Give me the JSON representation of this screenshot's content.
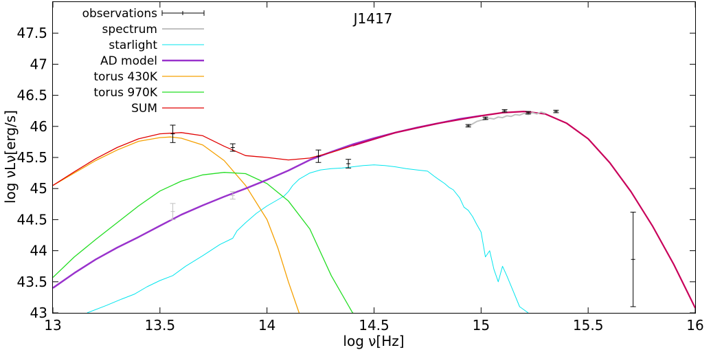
{
  "chart_data": {
    "type": "line",
    "title": "J1417",
    "xlabel": "log ν[Hz]",
    "ylabel": "log νLν[erg/s]",
    "xlim": [
      13,
      16
    ],
    "ylim": [
      43,
      48
    ],
    "x_ticks": [
      13,
      13.5,
      14,
      14.5,
      15,
      15.5,
      16
    ],
    "y_ticks": [
      43,
      43.5,
      44,
      44.5,
      45,
      45.5,
      46,
      46.5,
      47,
      47.5
    ],
    "x_tick_labels": [
      "13",
      "13.5",
      "14",
      "14.5",
      "15",
      "15.5",
      "16"
    ],
    "y_tick_labels": [
      "43",
      "43.5",
      "44",
      "44.5",
      "45",
      "45.5",
      "46",
      "46.5",
      "47",
      "47.5"
    ],
    "grid": false,
    "legend_position": "top-left",
    "series": [
      {
        "name": "observations",
        "kind": "errorbars",
        "color": "#000000",
        "points": [
          {
            "x": 13.56,
            "y": 45.88,
            "err": 0.14
          },
          {
            "x": 13.84,
            "y": 45.66,
            "err": 0.06
          },
          {
            "x": 14.24,
            "y": 45.52,
            "err": 0.1
          },
          {
            "x": 14.38,
            "y": 45.4,
            "err": 0.07
          },
          {
            "x": 14.94,
            "y": 46.01,
            "err": 0.02
          },
          {
            "x": 15.02,
            "y": 46.13,
            "err": 0.02
          },
          {
            "x": 15.11,
            "y": 46.25,
            "err": 0.02
          },
          {
            "x": 15.22,
            "y": 46.22,
            "err": 0.02
          },
          {
            "x": 15.35,
            "y": 46.24,
            "err": 0.02
          },
          {
            "x": 15.71,
            "y": 43.86,
            "err": 0.76
          }
        ]
      },
      {
        "name": "",
        "kind": "errorbars",
        "color": "#c0c0c0",
        "points": [
          {
            "x": 13.56,
            "y": 44.63,
            "err": 0.13
          },
          {
            "x": 13.84,
            "y": 44.89,
            "err": 0.06
          }
        ]
      },
      {
        "name": "spectrum",
        "kind": "line",
        "color": "#c0c0c0",
        "width": 2,
        "x": [
          14.95,
          14.98,
          15.0,
          15.02,
          15.04,
          15.06,
          15.08,
          15.1,
          15.12,
          15.14,
          15.16,
          15.18,
          15.2,
          15.22,
          15.24,
          15.26,
          15.28,
          15.3
        ],
        "y": [
          46.02,
          46.08,
          46.1,
          46.11,
          46.13,
          46.12,
          46.15,
          46.14,
          46.17,
          46.16,
          46.19,
          46.18,
          46.21,
          46.19,
          46.22,
          46.2,
          46.23,
          46.21
        ]
      },
      {
        "name": "starlight",
        "kind": "line",
        "color": "#00e5ee",
        "width": 1,
        "x": [
          13.16,
          13.25,
          13.32,
          13.38,
          13.44,
          13.5,
          13.56,
          13.62,
          13.7,
          13.78,
          13.84,
          13.86,
          13.9,
          13.95,
          14.0,
          14.05,
          14.08,
          14.1,
          14.12,
          14.15,
          14.2,
          14.25,
          14.3,
          14.35,
          14.4,
          14.45,
          14.5,
          14.55,
          14.6,
          14.65,
          14.7,
          14.75,
          14.78,
          14.8,
          14.83,
          14.85,
          14.87,
          14.9,
          14.92,
          14.94,
          14.96,
          14.98,
          15.0,
          15.02,
          15.04,
          15.06,
          15.08,
          15.1,
          15.12,
          15.15,
          15.18,
          15.2,
          15.22
        ],
        "y": [
          43.0,
          43.12,
          43.22,
          43.3,
          43.42,
          43.52,
          43.6,
          43.75,
          43.92,
          44.1,
          44.2,
          44.32,
          44.45,
          44.6,
          44.72,
          44.82,
          44.88,
          44.95,
          45.05,
          45.15,
          45.25,
          45.3,
          45.32,
          45.33,
          45.35,
          45.37,
          45.38,
          45.37,
          45.35,
          45.32,
          45.3,
          45.28,
          45.2,
          45.15,
          45.08,
          45.02,
          44.98,
          44.85,
          44.7,
          44.65,
          44.55,
          44.42,
          44.3,
          43.9,
          44.0,
          43.7,
          43.5,
          43.75,
          43.6,
          43.35,
          43.1,
          43.05,
          43.0
        ]
      },
      {
        "name": "AD model",
        "kind": "line",
        "color": "#9932cc",
        "width": 2.5,
        "x": [
          13.0,
          13.1,
          13.2,
          13.3,
          13.4,
          13.5,
          13.6,
          13.7,
          13.8,
          13.9,
          14.0,
          14.1,
          14.2,
          14.3,
          14.4,
          14.5,
          14.6,
          14.7,
          14.8,
          14.9,
          15.0
        ],
        "y": [
          43.4,
          43.64,
          43.86,
          44.05,
          44.22,
          44.4,
          44.58,
          44.73,
          44.87,
          45.0,
          45.14,
          45.29,
          45.46,
          45.59,
          45.71,
          45.81,
          45.9,
          45.98,
          46.05,
          46.12,
          46.17
        ]
      },
      {
        "name": "torus 430K",
        "kind": "line",
        "color": "#f5a000",
        "width": 1.3,
        "x": [
          13.0,
          13.1,
          13.2,
          13.3,
          13.4,
          13.5,
          13.55,
          13.6,
          13.7,
          13.8,
          13.9,
          14.0,
          14.05,
          14.1,
          14.15
        ],
        "y": [
          45.05,
          45.25,
          45.45,
          45.62,
          45.76,
          45.82,
          45.83,
          45.81,
          45.7,
          45.45,
          45.05,
          44.5,
          44.05,
          43.5,
          43.0
        ]
      },
      {
        "name": "torus 970K",
        "kind": "line",
        "color": "#22dd22",
        "width": 1.3,
        "x": [
          13.0,
          13.1,
          13.2,
          13.3,
          13.4,
          13.5,
          13.6,
          13.7,
          13.8,
          13.9,
          14.0,
          14.1,
          14.2,
          14.3,
          14.4,
          14.45
        ],
        "y": [
          43.57,
          43.9,
          44.18,
          44.45,
          44.72,
          44.96,
          45.12,
          45.22,
          45.26,
          45.24,
          45.08,
          44.8,
          44.35,
          43.6,
          43.0,
          42.9
        ]
      },
      {
        "name": "SUM",
        "kind": "line",
        "color": "#e00000",
        "width": 1.3,
        "x": [
          13.0,
          13.1,
          13.2,
          13.3,
          13.4,
          13.5,
          13.6,
          13.7,
          13.8,
          13.9,
          14.0,
          14.1,
          14.2,
          14.3,
          14.4
        ],
        "y": [
          45.05,
          45.27,
          45.48,
          45.66,
          45.8,
          45.88,
          45.9,
          45.85,
          45.68,
          45.53,
          45.5,
          45.46,
          45.49,
          45.58,
          45.69
        ]
      },
      {
        "name": "",
        "kind": "line",
        "color": "#c8005a",
        "width": 2.2,
        "x": [
          14.4,
          14.6,
          14.8,
          15.0,
          15.1,
          15.2,
          15.3,
          15.4,
          15.5,
          15.6,
          15.7,
          15.8,
          15.9,
          16.0
        ],
        "y": [
          45.69,
          45.9,
          46.05,
          46.17,
          46.22,
          46.24,
          46.2,
          46.05,
          45.8,
          45.42,
          44.95,
          44.4,
          43.78,
          43.08
        ]
      }
    ]
  }
}
